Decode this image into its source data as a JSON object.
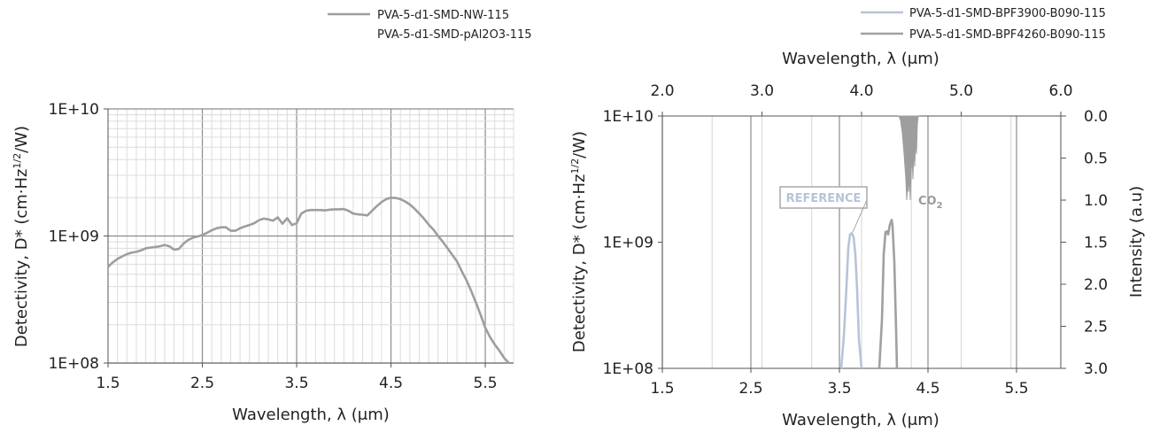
{
  "chart_data": [
    {
      "type": "line",
      "xlabel": "Wavelength, λ (μm)",
      "ylabel": "Detectivity, D* (cm·Hz",
      "ylabel_sup": "1/2",
      "ylabel_tail": "/W)",
      "xlim": [
        1.5,
        5.8
      ],
      "ylim": [
        100000000,
        10000000000
      ],
      "yscale": "log",
      "grid": true,
      "x_ticks": [
        "1.5",
        "2.5",
        "3.5",
        "4.5",
        "5.5"
      ],
      "x_tick_values": [
        1.5,
        2.5,
        3.5,
        4.5,
        5.5
      ],
      "y_ticks": [
        "1E+08",
        "1E+09",
        "1E+10"
      ],
      "y_tick_values": [
        100000000,
        1000000000,
        10000000000
      ],
      "legend": [
        "PVA-5-d1-SMD-NW-115",
        "PVA-5-d1-SMD-pAl2O3-115"
      ],
      "legend_position": "top-right",
      "series": [
        {
          "name": "PVA-5-d1-SMD-NW-115",
          "color": "#9e9e9e",
          "x": [
            1.5,
            1.55,
            1.6,
            1.65,
            1.7,
            1.75,
            1.8,
            1.85,
            1.9,
            1.95,
            2.0,
            2.05,
            2.1,
            2.15,
            2.2,
            2.25,
            2.3,
            2.35,
            2.4,
            2.45,
            2.5,
            2.55,
            2.6,
            2.65,
            2.7,
            2.75,
            2.8,
            2.85,
            2.9,
            2.95,
            3.0,
            3.05,
            3.1,
            3.15,
            3.2,
            3.25,
            3.3,
            3.35,
            3.4,
            3.45,
            3.5,
            3.55,
            3.6,
            3.65,
            3.7,
            3.75,
            3.8,
            3.85,
            3.9,
            3.95,
            4.0,
            4.05,
            4.1,
            4.15,
            4.2,
            4.25,
            4.3,
            4.35,
            4.4,
            4.45,
            4.5,
            4.55,
            4.6,
            4.65,
            4.7,
            4.75,
            4.8,
            4.85,
            4.9,
            4.95,
            5.0,
            5.05,
            5.1,
            5.15,
            5.2,
            5.25,
            5.3,
            5.35,
            5.4,
            5.45,
            5.5,
            5.55,
            5.6,
            5.65,
            5.7,
            5.75
          ],
          "y": [
            570000000,
            620000000,
            660000000,
            690000000,
            720000000,
            740000000,
            750000000,
            770000000,
            800000000,
            810000000,
            820000000,
            830000000,
            850000000,
            830000000,
            780000000,
            790000000,
            870000000,
            930000000,
            970000000,
            990000000,
            1020000000,
            1060000000,
            1110000000,
            1150000000,
            1170000000,
            1170000000,
            1100000000,
            1100000000,
            1150000000,
            1190000000,
            1220000000,
            1260000000,
            1330000000,
            1370000000,
            1350000000,
            1320000000,
            1400000000,
            1250000000,
            1380000000,
            1220000000,
            1260000000,
            1500000000,
            1580000000,
            1600000000,
            1600000000,
            1600000000,
            1590000000,
            1610000000,
            1620000000,
            1620000000,
            1630000000,
            1580000000,
            1500000000,
            1480000000,
            1470000000,
            1450000000,
            1580000000,
            1720000000,
            1850000000,
            1950000000,
            2000000000,
            1990000000,
            1950000000,
            1870000000,
            1770000000,
            1640000000,
            1500000000,
            1370000000,
            1230000000,
            1120000000,
            1000000000,
            900000000,
            800000000,
            710000000,
            630000000,
            530000000,
            450000000,
            370000000,
            300000000,
            240000000,
            190000000,
            160000000,
            140000000,
            125000000,
            110000000,
            100000000
          ]
        }
      ]
    },
    {
      "type": "line",
      "xlabel": "Wavelength, λ (μm)",
      "x2label": "Wavelength, λ (μm)",
      "ylabel": "Detectivity, D* (cm·Hz",
      "ylabel_sup": "1/2",
      "ylabel_tail": "/W)",
      "y2label": "Intensity (a.u)",
      "xlim": [
        1.5,
        6.0
      ],
      "x2lim": [
        2.0,
        6.0
      ],
      "ylim": [
        100000000,
        10000000000
      ],
      "yscale": "log",
      "y2lim": [
        0.0,
        3.0
      ],
      "y2_inverted": true,
      "grid": true,
      "x_ticks": [
        "1.5",
        "2.5",
        "3.5",
        "4.5",
        "5.5"
      ],
      "x_tick_values": [
        1.5,
        2.5,
        3.5,
        4.5,
        5.5
      ],
      "x2_ticks": [
        "2.0",
        "3.0",
        "4.0",
        "5.0",
        "6.0"
      ],
      "x2_tick_values": [
        2.0,
        3.0,
        4.0,
        5.0,
        6.0
      ],
      "y_ticks": [
        "1E+08",
        "1E+09",
        "1E+10"
      ],
      "y_tick_values": [
        100000000,
        1000000000,
        10000000000
      ],
      "y2_ticks": [
        "0.0",
        "0.5",
        "1.0",
        "1.5",
        "2.0",
        "2.5",
        "3.0"
      ],
      "y2_tick_values": [
        0.0,
        0.5,
        1.0,
        1.5,
        2.0,
        2.5,
        3.0
      ],
      "legend": [
        "PVA-5-d1-SMD-BPF3900-B090-115",
        "PVA-5-d1-SMD-BPF4260-B090-115"
      ],
      "legend_position": "top-right",
      "series": [
        {
          "name": "PVA-5-d1-SMD-BPF3900-B090-115",
          "color": "#b7c3d8",
          "x": [
            3.52,
            3.55,
            3.58,
            3.6,
            3.62,
            3.64,
            3.66,
            3.68,
            3.7,
            3.72,
            3.75
          ],
          "y": [
            100000000,
            180000000,
            450000000,
            900000000,
            1150000000,
            1180000000,
            1100000000,
            800000000,
            420000000,
            170000000,
            100000000
          ]
        },
        {
          "name": "PVA-5-d1-SMD-BPF4260-B090-115",
          "color": "#a0a0a0",
          "x": [
            3.95,
            3.98,
            4.0,
            4.02,
            4.04,
            4.05,
            4.07,
            4.09,
            4.1,
            4.12,
            4.14,
            4.15
          ],
          "y": [
            100000000,
            240000000,
            800000000,
            1200000000,
            1220000000,
            1150000000,
            1380000000,
            1500000000,
            1350000000,
            700000000,
            200000000,
            100000000
          ]
        }
      ],
      "absorption": {
        "color": "#9e9e9e",
        "x": [
          4.17,
          4.19,
          4.21,
          4.23,
          4.25,
          4.26,
          4.27,
          4.28,
          4.29,
          4.3,
          4.31,
          4.32,
          4.33,
          4.34,
          4.35,
          4.36,
          4.37,
          4.38,
          4.39
        ],
        "intensity": [
          0.0,
          0.05,
          0.2,
          0.45,
          0.75,
          1.0,
          0.82,
          0.9,
          0.7,
          1.0,
          0.65,
          0.5,
          0.75,
          0.4,
          0.6,
          0.3,
          0.45,
          0.1,
          0.0
        ]
      },
      "annotations": {
        "reference_label": "REFERENCE",
        "co2_label": "CO",
        "co2_sub": "2"
      }
    }
  ]
}
